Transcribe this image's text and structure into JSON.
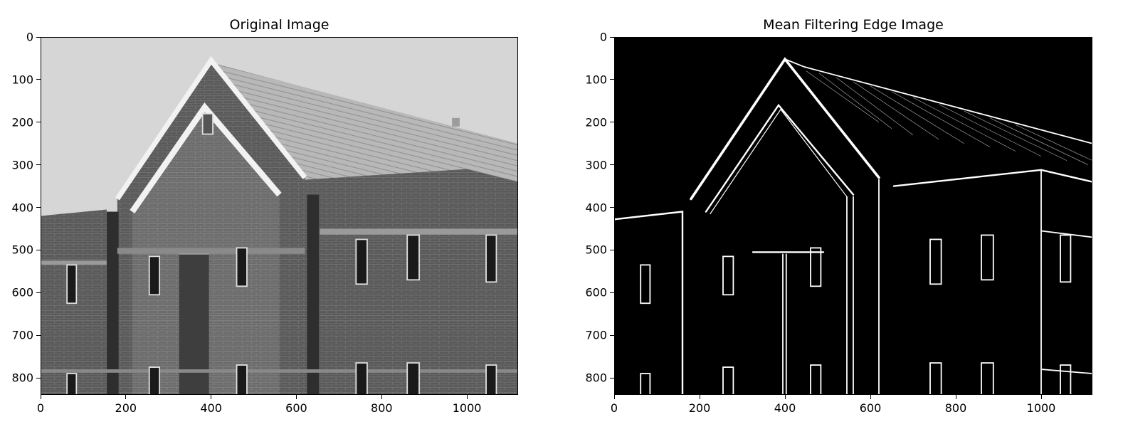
{
  "chart_data": [
    {
      "type": "image",
      "title": "Original Image",
      "xlim": [
        0,
        1120
      ],
      "ylim": [
        840,
        0
      ],
      "x_ticks": [
        0,
        200,
        400,
        600,
        800,
        1000
      ],
      "y_ticks": [
        0,
        100,
        200,
        300,
        400,
        500,
        600,
        700,
        800
      ],
      "colormap": "gray",
      "grid": false
    },
    {
      "type": "image",
      "title": "Mean Filtering Edge Image",
      "xlim": [
        0,
        1120
      ],
      "ylim": [
        840,
        0
      ],
      "x_ticks": [
        0,
        200,
        400,
        600,
        800,
        1000
      ],
      "y_ticks": [
        0,
        100,
        200,
        300,
        400,
        500,
        600,
        700,
        800
      ],
      "colormap": "binary",
      "grid": false
    }
  ]
}
